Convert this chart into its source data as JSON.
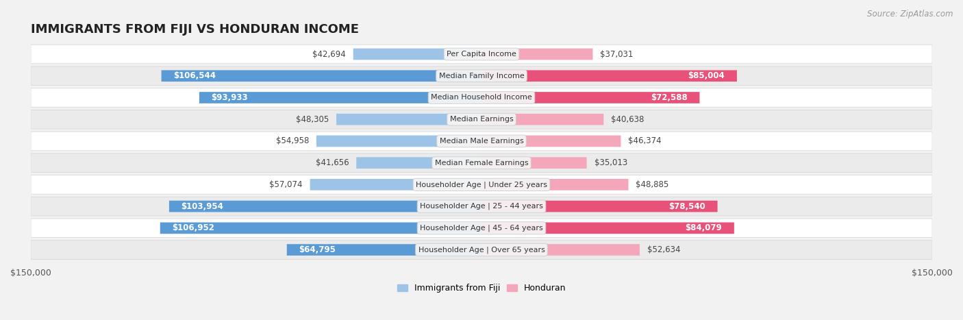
{
  "title": "IMMIGRANTS FROM FIJI VS HONDURAN INCOME",
  "source": "Source: ZipAtlas.com",
  "categories": [
    "Per Capita Income",
    "Median Family Income",
    "Median Household Income",
    "Median Earnings",
    "Median Male Earnings",
    "Median Female Earnings",
    "Householder Age | Under 25 years",
    "Householder Age | 25 - 44 years",
    "Householder Age | 45 - 64 years",
    "Householder Age | Over 65 years"
  ],
  "fiji_values": [
    42694,
    106544,
    93933,
    48305,
    54958,
    41656,
    57074,
    103954,
    106952,
    64795
  ],
  "honduran_values": [
    37031,
    85004,
    72588,
    40638,
    46374,
    35013,
    48885,
    78540,
    84079,
    52634
  ],
  "fiji_color_dark": "#5b9bd5",
  "fiji_color_light": "#9dc3e6",
  "honduran_color_dark": "#e8527a",
  "honduran_color_light": "#f4a7bb",
  "fiji_label": "Immigrants from Fiji",
  "honduran_label": "Honduran",
  "max_value": 150000,
  "bg_color": "#f2f2f2",
  "row_color_odd": "#ffffff",
  "row_color_even": "#ebebeb",
  "row_border_color": "#d8d8d8",
  "label_box_color": "#f5f5f5",
  "label_box_edge": "#d0d0d0",
  "title_fontsize": 13,
  "source_fontsize": 8.5,
  "tick_fontsize": 9,
  "value_fontsize": 8.5,
  "category_fontsize": 8,
  "legend_fontsize": 9,
  "tick_label": "$150,000"
}
